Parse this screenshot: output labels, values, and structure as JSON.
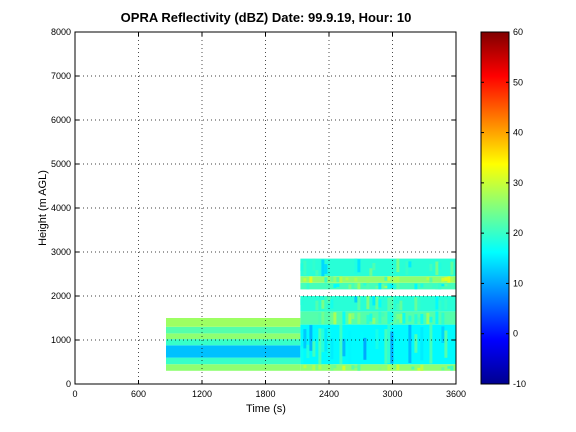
{
  "chart_data": {
    "type": "heatmap",
    "title": "OPRA Reflectivity (dBZ)  Date: 99.9.19, Hour: 10",
    "xlabel": "Time (s)",
    "ylabel": "Height (m AGL)",
    "xlim": [
      0,
      3600
    ],
    "ylim": [
      0,
      8000
    ],
    "xticks": [
      "0",
      "600",
      "1200",
      "1800",
      "2400",
      "3000",
      "3600"
    ],
    "yticks": [
      "0",
      "1000",
      "2000",
      "3000",
      "4000",
      "5000",
      "6000",
      "7000",
      "8000"
    ],
    "grid": true,
    "colorbar": {
      "min": -10,
      "max": 60,
      "colormap": "jet",
      "ticks": [
        "-10",
        "0",
        "10",
        "20",
        "30",
        "40",
        "50",
        "60"
      ]
    },
    "layers": [
      {
        "name": "steady",
        "x_start": 860,
        "x_end": 2130,
        "rows": [
          {
            "y0": 300,
            "y1": 450,
            "dbz": 26
          },
          {
            "y0": 450,
            "y1": 600,
            "dbz": 20
          },
          {
            "y0": 600,
            "y1": 880,
            "dbz": 12
          },
          {
            "y0": 880,
            "y1": 1020,
            "dbz": 20
          },
          {
            "y0": 1020,
            "y1": 1150,
            "dbz": 26
          },
          {
            "y0": 1150,
            "y1": 1300,
            "dbz": 22
          },
          {
            "y0": 1300,
            "y1": 1500,
            "dbz": 27
          }
        ]
      },
      {
        "name": "convective",
        "x_start": 2130,
        "x_end": 3600,
        "rows": [
          {
            "y0": 300,
            "y1": 450,
            "dbz": 26
          },
          {
            "y0": 450,
            "y1": 1350,
            "dbz": 16
          },
          {
            "y0": 1350,
            "y1": 1650,
            "dbz": 22
          },
          {
            "y0": 1650,
            "y1": 2000,
            "dbz": 19
          }
        ]
      },
      {
        "name": "upper",
        "x_start": 2130,
        "x_end": 3600,
        "rows": [
          {
            "y0": 2150,
            "y1": 2300,
            "dbz": 21
          },
          {
            "y0": 2300,
            "y1": 2450,
            "dbz": 26
          },
          {
            "y0": 2450,
            "y1": 2850,
            "dbz": 19
          }
        ]
      }
    ]
  }
}
